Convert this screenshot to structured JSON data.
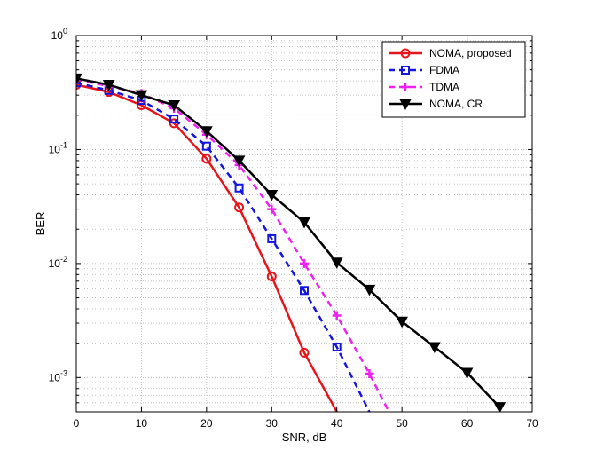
{
  "chart_data": {
    "type": "line",
    "title": "",
    "xlabel": "SNR, dB",
    "ylabel": "BER",
    "xlim": [
      0,
      70
    ],
    "ylim": [
      0.0005,
      1
    ],
    "yscale": "log",
    "grid": true,
    "legend_position": "top-right",
    "x_ticks": [
      0,
      10,
      20,
      30,
      40,
      50,
      60,
      70
    ],
    "x_tick_labels": [
      "0",
      "10",
      "20",
      "30",
      "40",
      "50",
      "60",
      "70"
    ],
    "y_ticks": [
      {
        "value": 1,
        "base": "10",
        "exp": "0"
      },
      {
        "value": 0.1,
        "base": "10",
        "exp": "-1"
      },
      {
        "value": 0.01,
        "base": "10",
        "exp": "-2"
      },
      {
        "value": 0.001,
        "base": "10",
        "exp": "-3"
      }
    ],
    "series": [
      {
        "name": "NOMA, proposed",
        "color": "#e8141b",
        "line_style": "solid",
        "marker": "circle",
        "x": [
          0,
          5,
          10,
          15,
          20,
          25,
          30,
          35,
          40
        ],
        "y": [
          0.37,
          0.32,
          0.245,
          0.17,
          0.083,
          0.031,
          0.0077,
          0.00165,
          0.0005
        ]
      },
      {
        "name": "FDMA",
        "color": "#1515e0",
        "line_style": "dashed",
        "marker": "square",
        "x": [
          0,
          5,
          10,
          15,
          20,
          25,
          30,
          35,
          40,
          45
        ],
        "y": [
          0.385,
          0.33,
          0.27,
          0.185,
          0.107,
          0.046,
          0.0165,
          0.0058,
          0.00185,
          0.0005
        ]
      },
      {
        "name": "TDMA",
        "color": "#f020f0",
        "line_style": "dashed",
        "marker": "plus",
        "x": [
          0,
          5,
          10,
          15,
          20,
          25,
          30,
          35,
          40,
          45,
          48
        ],
        "y": [
          0.41,
          0.36,
          0.31,
          0.23,
          0.135,
          0.073,
          0.03,
          0.01,
          0.0035,
          0.00108,
          0.0005
        ]
      },
      {
        "name": "NOMA, CR",
        "color": "#000000",
        "line_style": "solid",
        "marker": "triangle-down",
        "x": [
          0,
          5,
          10,
          15,
          20,
          25,
          30,
          35,
          40,
          45,
          50,
          55,
          60,
          65
        ],
        "y": [
          0.42,
          0.37,
          0.3,
          0.245,
          0.145,
          0.08,
          0.04,
          0.023,
          0.0102,
          0.0059,
          0.0031,
          0.00185,
          0.0011,
          0.00055
        ]
      }
    ]
  }
}
